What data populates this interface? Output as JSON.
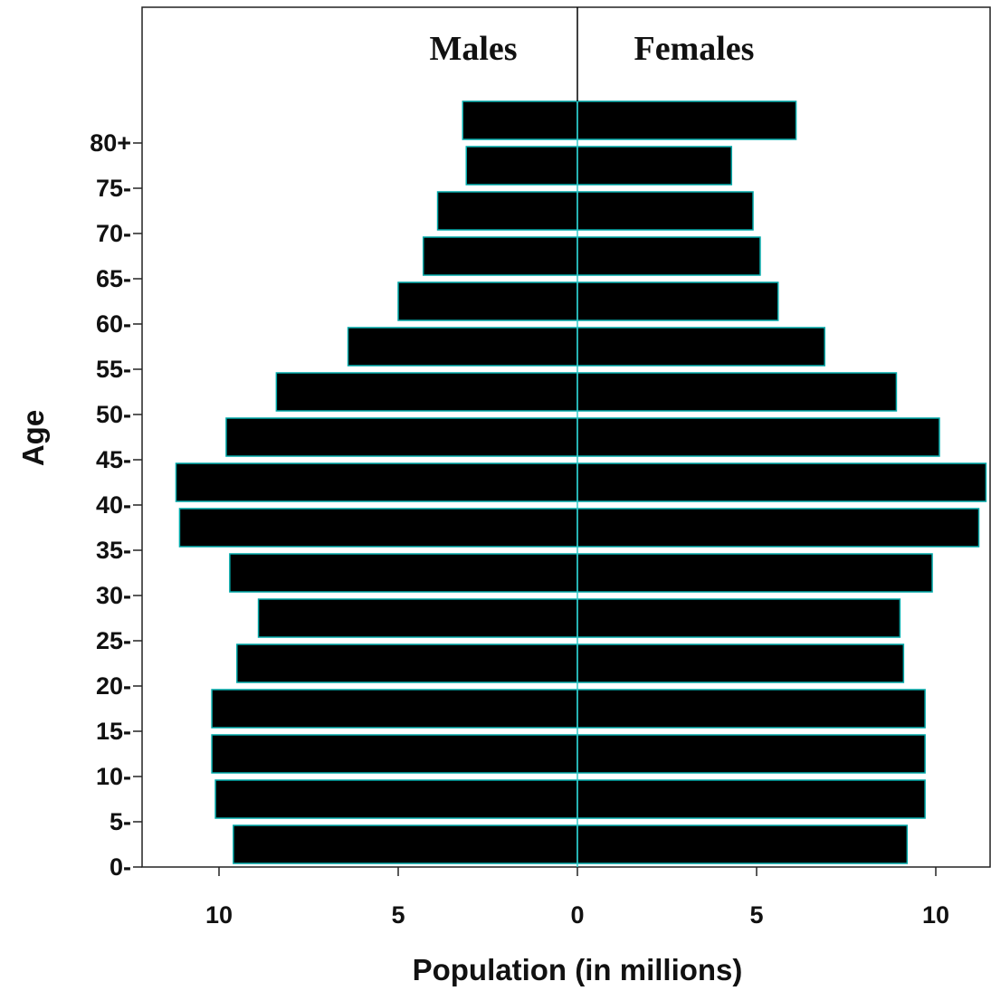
{
  "chart_data": {
    "type": "bar",
    "orientation": "horizontal",
    "layout": "population-pyramid",
    "xlabel": "Population (in millions)",
    "ylabel": "Age",
    "xlim": [
      -10,
      10
    ],
    "x_ticks": [
      {
        "value": -10,
        "label": "10"
      },
      {
        "value": -5,
        "label": "5"
      },
      {
        "value": 0,
        "label": "0"
      },
      {
        "value": 5,
        "label": "5"
      },
      {
        "value": 10,
        "label": "10"
      }
    ],
    "categories": [
      "0-",
      "5-",
      "10-",
      "15-",
      "20-",
      "25-",
      "30-",
      "35-",
      "40-",
      "45-",
      "50-",
      "55-",
      "60-",
      "65-",
      "70-",
      "75-",
      "80+"
    ],
    "series": [
      {
        "name": "Males",
        "values": [
          9.6,
          10.1,
          10.2,
          10.2,
          9.5,
          8.9,
          9.7,
          11.1,
          11.2,
          9.8,
          8.4,
          6.4,
          5.0,
          4.3,
          3.9,
          3.1,
          3.2
        ]
      },
      {
        "name": "Females",
        "values": [
          9.2,
          9.7,
          9.7,
          9.7,
          9.1,
          9.0,
          9.9,
          11.2,
          11.4,
          10.1,
          8.9,
          6.9,
          5.6,
          5.1,
          4.9,
          4.3,
          6.1
        ]
      }
    ],
    "bar_color": "#000000",
    "bar_outline_color": "#00aaaa",
    "grid": false,
    "legend": "none"
  }
}
